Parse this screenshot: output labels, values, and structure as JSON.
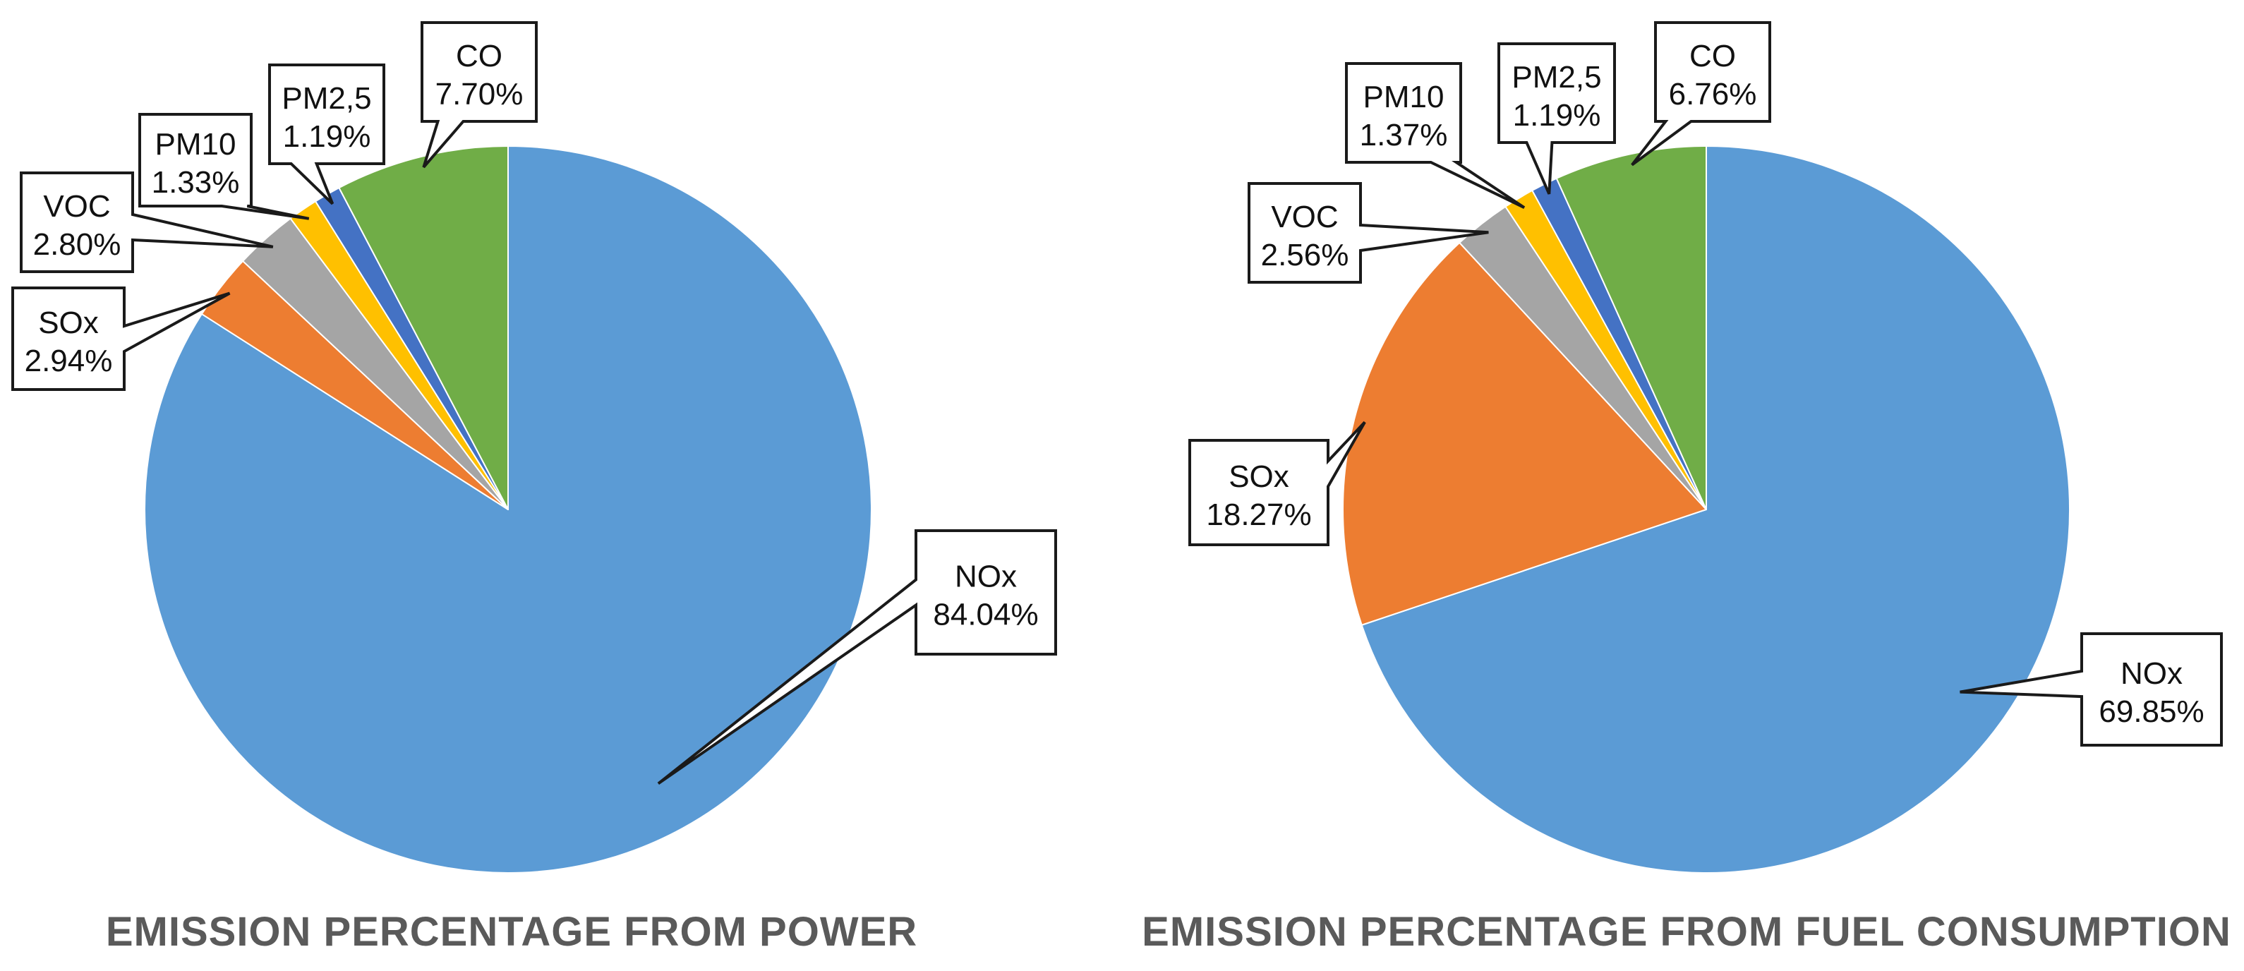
{
  "chart_data": [
    {
      "type": "pie",
      "title": "EMISSION PERCENTAGE FROM POWER",
      "start_angle_deg": 0,
      "direction": "clockwise",
      "slices": [
        {
          "label": "NOx",
          "value": 84.04,
          "display": "84.04%",
          "color": "#5B9BD5"
        },
        {
          "label": "SOx",
          "value": 2.94,
          "display": "2.94%",
          "color": "#ED7D31"
        },
        {
          "label": "VOC",
          "value": 2.8,
          "display": "2.80%",
          "color": "#A5A5A5"
        },
        {
          "label": "PM10",
          "value": 1.33,
          "display": "1.33%",
          "color": "#FFC000"
        },
        {
          "label": "PM2,5",
          "value": 1.19,
          "display": "1.19%",
          "color": "#4472C4"
        },
        {
          "label": "CO",
          "value": 7.7,
          "display": "7.70%",
          "color": "#70AD47"
        }
      ]
    },
    {
      "type": "pie",
      "title": "EMISSION PERCENTAGE FROM FUEL CONSUMPTION",
      "start_angle_deg": 0,
      "direction": "clockwise",
      "slices": [
        {
          "label": "NOx",
          "value": 69.85,
          "display": "69.85%",
          "color": "#5B9BD5"
        },
        {
          "label": "SOx",
          "value": 18.27,
          "display": "18.27%",
          "color": "#ED7D31"
        },
        {
          "label": "VOC",
          "value": 2.56,
          "display": "2.56%",
          "color": "#A5A5A5"
        },
        {
          "label": "PM10",
          "value": 1.37,
          "display": "1.37%",
          "color": "#FFC000"
        },
        {
          "label": "PM2,5",
          "value": 1.19,
          "display": "1.19%",
          "color": "#4472C4"
        },
        {
          "label": "CO",
          "value": 6.76,
          "display": "6.76%",
          "color": "#70AD47"
        }
      ]
    }
  ]
}
